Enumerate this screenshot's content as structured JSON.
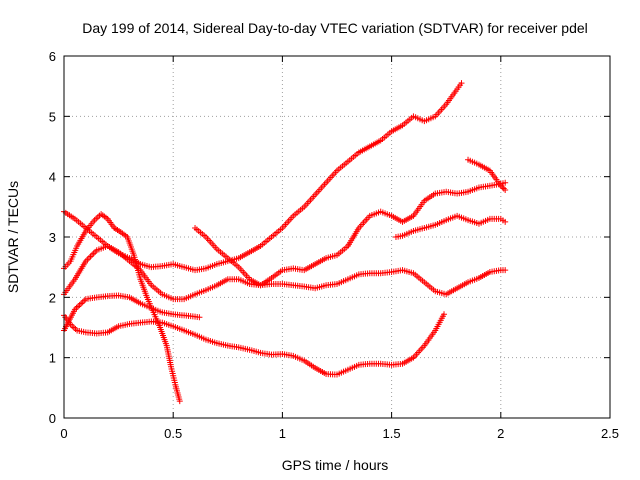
{
  "chart_data": {
    "type": "scatter",
    "title": "Day 199 of 2014, Sidereal Day-to-day VTEC variation (SDTVAR) for receiver pdel",
    "xlabel": "GPS time / hours",
    "ylabel": "SDTVAR / TECUs",
    "xlim": [
      0,
      2.5
    ],
    "ylim": [
      0,
      6
    ],
    "xticks": [
      "0",
      "0.5",
      "1",
      "1.5",
      "2",
      "2.5"
    ],
    "yticks": [
      "0",
      "1",
      "2",
      "3",
      "4",
      "5",
      "6"
    ],
    "grid": true,
    "marker": "+",
    "color": "#ff0000",
    "series": [
      {
        "values": [
          [
            0,
            1.7
          ],
          [
            0.03,
            1.55
          ],
          [
            0.06,
            1.45
          ],
          [
            0.1,
            1.42
          ],
          [
            0.15,
            1.4
          ],
          [
            0.2,
            1.42
          ],
          [
            0.25,
            1.52
          ],
          [
            0.3,
            1.56
          ],
          [
            0.35,
            1.58
          ],
          [
            0.4,
            1.6
          ],
          [
            0.45,
            1.58
          ],
          [
            0.5,
            1.52
          ],
          [
            0.55,
            1.45
          ],
          [
            0.6,
            1.38
          ],
          [
            0.65,
            1.3
          ],
          [
            0.7,
            1.24
          ],
          [
            0.75,
            1.2
          ],
          [
            0.8,
            1.17
          ],
          [
            0.85,
            1.13
          ],
          [
            0.9,
            1.08
          ],
          [
            0.95,
            1.05
          ],
          [
            1.0,
            1.06
          ],
          [
            1.05,
            1.03
          ],
          [
            1.1,
            0.95
          ],
          [
            1.15,
            0.83
          ],
          [
            1.2,
            0.73
          ],
          [
            1.25,
            0.72
          ],
          [
            1.3,
            0.8
          ],
          [
            1.35,
            0.88
          ],
          [
            1.4,
            0.9
          ],
          [
            1.45,
            0.9
          ],
          [
            1.5,
            0.88
          ],
          [
            1.55,
            0.9
          ],
          [
            1.6,
            1.0
          ],
          [
            1.65,
            1.2
          ],
          [
            1.7,
            1.45
          ],
          [
            1.74,
            1.72
          ]
        ]
      },
      {
        "values": [
          [
            0,
            1.45
          ],
          [
            0.05,
            1.8
          ],
          [
            0.1,
            1.97
          ],
          [
            0.15,
            2.0
          ],
          [
            0.2,
            2.02
          ],
          [
            0.25,
            2.03
          ],
          [
            0.3,
            2.0
          ],
          [
            0.35,
            1.9
          ],
          [
            0.4,
            1.82
          ],
          [
            0.45,
            1.75
          ],
          [
            0.5,
            1.72
          ],
          [
            0.55,
            1.7
          ],
          [
            0.6,
            1.68
          ],
          [
            0.62,
            1.67
          ]
        ]
      },
      {
        "values": [
          [
            0,
            2.48
          ],
          [
            0.03,
            2.6
          ],
          [
            0.06,
            2.85
          ],
          [
            0.1,
            3.1
          ],
          [
            0.14,
            3.28
          ],
          [
            0.17,
            3.38
          ],
          [
            0.2,
            3.3
          ],
          [
            0.23,
            3.15
          ],
          [
            0.26,
            3.08
          ],
          [
            0.29,
            3.0
          ],
          [
            0.32,
            2.7
          ],
          [
            0.35,
            2.3
          ],
          [
            0.38,
            2.0
          ],
          [
            0.41,
            1.75
          ],
          [
            0.44,
            1.5
          ],
          [
            0.47,
            1.2
          ],
          [
            0.49,
            0.85
          ],
          [
            0.51,
            0.55
          ],
          [
            0.53,
            0.28
          ]
        ]
      },
      {
        "values": [
          [
            0,
            2.05
          ],
          [
            0.05,
            2.3
          ],
          [
            0.1,
            2.6
          ],
          [
            0.15,
            2.78
          ],
          [
            0.2,
            2.85
          ],
          [
            0.25,
            2.75
          ],
          [
            0.3,
            2.6
          ],
          [
            0.35,
            2.45
          ],
          [
            0.4,
            2.2
          ],
          [
            0.45,
            2.05
          ],
          [
            0.5,
            1.97
          ],
          [
            0.55,
            1.97
          ],
          [
            0.6,
            2.05
          ],
          [
            0.65,
            2.12
          ],
          [
            0.7,
            2.2
          ],
          [
            0.75,
            2.3
          ],
          [
            0.8,
            2.3
          ],
          [
            0.85,
            2.22
          ],
          [
            0.9,
            2.2
          ],
          [
            0.95,
            2.22
          ],
          [
            1.0,
            2.22
          ],
          [
            1.05,
            2.2
          ],
          [
            1.1,
            2.18
          ],
          [
            1.15,
            2.15
          ],
          [
            1.2,
            2.2
          ],
          [
            1.25,
            2.22
          ],
          [
            1.3,
            2.3
          ],
          [
            1.35,
            2.38
          ],
          [
            1.4,
            2.4
          ],
          [
            1.45,
            2.4
          ],
          [
            1.5,
            2.42
          ],
          [
            1.55,
            2.45
          ],
          [
            1.6,
            2.4
          ],
          [
            1.65,
            2.25
          ],
          [
            1.7,
            2.1
          ],
          [
            1.75,
            2.05
          ],
          [
            1.8,
            2.15
          ],
          [
            1.85,
            2.25
          ],
          [
            1.9,
            2.32
          ],
          [
            1.95,
            2.42
          ],
          [
            2.0,
            2.45
          ],
          [
            2.02,
            2.45
          ]
        ]
      },
      {
        "values": [
          [
            0,
            3.42
          ],
          [
            0.05,
            3.3
          ],
          [
            0.1,
            3.15
          ],
          [
            0.15,
            3.0
          ],
          [
            0.2,
            2.85
          ],
          [
            0.25,
            2.73
          ],
          [
            0.3,
            2.65
          ],
          [
            0.35,
            2.55
          ],
          [
            0.4,
            2.5
          ],
          [
            0.45,
            2.52
          ],
          [
            0.5,
            2.55
          ],
          [
            0.55,
            2.5
          ],
          [
            0.6,
            2.45
          ],
          [
            0.65,
            2.48
          ],
          [
            0.7,
            2.55
          ],
          [
            0.75,
            2.6
          ],
          [
            0.8,
            2.65
          ],
          [
            0.85,
            2.75
          ],
          [
            0.9,
            2.85
          ],
          [
            0.95,
            3.0
          ],
          [
            1.0,
            3.15
          ],
          [
            1.05,
            3.35
          ],
          [
            1.1,
            3.5
          ],
          [
            1.15,
            3.7
          ],
          [
            1.2,
            3.9
          ],
          [
            1.25,
            4.1
          ],
          [
            1.3,
            4.25
          ],
          [
            1.35,
            4.4
          ],
          [
            1.4,
            4.5
          ],
          [
            1.45,
            4.6
          ],
          [
            1.5,
            4.75
          ],
          [
            1.55,
            4.85
          ],
          [
            1.6,
            5.0
          ],
          [
            1.65,
            4.92
          ],
          [
            1.7,
            5.0
          ],
          [
            1.75,
            5.2
          ],
          [
            1.8,
            5.45
          ],
          [
            1.82,
            5.55
          ]
        ]
      },
      {
        "values": [
          [
            0.6,
            3.15
          ],
          [
            0.65,
            3.0
          ],
          [
            0.7,
            2.8
          ],
          [
            0.75,
            2.65
          ],
          [
            0.8,
            2.5
          ],
          [
            0.85,
            2.3
          ],
          [
            0.9,
            2.2
          ],
          [
            0.95,
            2.32
          ],
          [
            1.0,
            2.45
          ],
          [
            1.05,
            2.48
          ],
          [
            1.1,
            2.45
          ],
          [
            1.15,
            2.55
          ],
          [
            1.2,
            2.65
          ],
          [
            1.25,
            2.7
          ],
          [
            1.3,
            2.85
          ],
          [
            1.35,
            3.15
          ],
          [
            1.4,
            3.35
          ],
          [
            1.45,
            3.42
          ],
          [
            1.5,
            3.35
          ],
          [
            1.55,
            3.25
          ],
          [
            1.6,
            3.35
          ],
          [
            1.65,
            3.6
          ],
          [
            1.7,
            3.72
          ],
          [
            1.75,
            3.75
          ],
          [
            1.8,
            3.72
          ],
          [
            1.85,
            3.75
          ],
          [
            1.9,
            3.82
          ],
          [
            1.95,
            3.85
          ],
          [
            2.0,
            3.88
          ],
          [
            2.02,
            3.9
          ]
        ]
      },
      {
        "values": [
          [
            1.52,
            3.0
          ],
          [
            1.55,
            3.02
          ],
          [
            1.6,
            3.1
          ],
          [
            1.65,
            3.15
          ],
          [
            1.7,
            3.2
          ],
          [
            1.75,
            3.28
          ],
          [
            1.8,
            3.35
          ],
          [
            1.85,
            3.28
          ],
          [
            1.9,
            3.22
          ],
          [
            1.95,
            3.3
          ],
          [
            2.0,
            3.3
          ],
          [
            2.02,
            3.25
          ]
        ]
      },
      {
        "values": [
          [
            1.85,
            4.28
          ],
          [
            1.9,
            4.2
          ],
          [
            1.95,
            4.1
          ],
          [
            1.98,
            3.95
          ],
          [
            2.0,
            3.85
          ],
          [
            2.02,
            3.78
          ]
        ]
      }
    ]
  }
}
